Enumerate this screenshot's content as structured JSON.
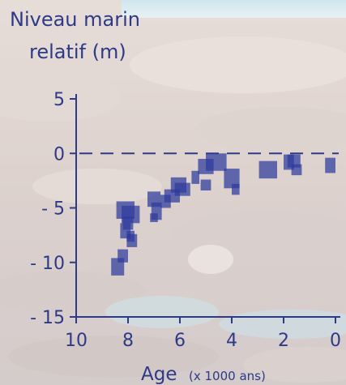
{
  "chart_data": {
    "type": "scatter",
    "title": "",
    "ylabel_line1": "Niveau marin",
    "ylabel_line2": "relatif (m)",
    "xlabel_main": "Age",
    "xlabel_unit": "(x 1000 ans)",
    "xlim": [
      10,
      0
    ],
    "ylim": [
      -15,
      5
    ],
    "x_ticks": [
      10,
      8,
      6,
      4,
      2,
      0
    ],
    "x_tick_labels": [
      "10",
      "8",
      "6",
      "4",
      "2",
      "0"
    ],
    "y_ticks": [
      5,
      0,
      -5,
      -10,
      -15
    ],
    "y_tick_labels": [
      "5",
      "0",
      "- 5",
      "- 10",
      "- 15"
    ],
    "reference_line_y": 0,
    "marker_color": "#2e3a9c",
    "axis_color": "#2e3a86",
    "grid": false,
    "legend": "none",
    "points": [
      {
        "x": 8.4,
        "y": -10.4,
        "age_err": 0.25,
        "level_err": 0.8
      },
      {
        "x": 8.2,
        "y": -9.4,
        "age_err": 0.2,
        "level_err": 0.6
      },
      {
        "x": 8.1,
        "y": -5.2,
        "age_err": 0.35,
        "level_err": 0.8
      },
      {
        "x": 7.9,
        "y": -5.6,
        "age_err": 0.35,
        "level_err": 0.8
      },
      {
        "x": 8.0,
        "y": -6.4,
        "age_err": 0.2,
        "level_err": 0.6
      },
      {
        "x": 8.1,
        "y": -7.1,
        "age_err": 0.2,
        "level_err": 0.7
      },
      {
        "x": 7.9,
        "y": -7.6,
        "age_err": 0.15,
        "level_err": 0.5
      },
      {
        "x": 7.85,
        "y": -8.0,
        "age_err": 0.2,
        "level_err": 0.6
      },
      {
        "x": 7.0,
        "y": -4.2,
        "age_err": 0.25,
        "level_err": 0.7
      },
      {
        "x": 6.9,
        "y": -5.3,
        "age_err": 0.2,
        "level_err": 0.8
      },
      {
        "x": 7.0,
        "y": -5.9,
        "age_err": 0.15,
        "level_err": 0.4
      },
      {
        "x": 6.55,
        "y": -4.4,
        "age_err": 0.2,
        "level_err": 0.6
      },
      {
        "x": 6.3,
        "y": -3.9,
        "age_err": 0.3,
        "level_err": 0.6
      },
      {
        "x": 6.05,
        "y": -2.9,
        "age_err": 0.3,
        "level_err": 0.7
      },
      {
        "x": 5.9,
        "y": -3.3,
        "age_err": 0.3,
        "level_err": 0.6
      },
      {
        "x": 5.4,
        "y": -2.2,
        "age_err": 0.15,
        "level_err": 0.6
      },
      {
        "x": 5.0,
        "y": -1.2,
        "age_err": 0.3,
        "level_err": 0.7
      },
      {
        "x": 5.0,
        "y": -2.9,
        "age_err": 0.2,
        "level_err": 0.5
      },
      {
        "x": 4.6,
        "y": -0.8,
        "age_err": 0.4,
        "level_err": 0.8
      },
      {
        "x": 4.0,
        "y": -2.3,
        "age_err": 0.3,
        "level_err": 0.9
      },
      {
        "x": 3.85,
        "y": -3.3,
        "age_err": 0.15,
        "level_err": 0.5
      },
      {
        "x": 2.6,
        "y": -1.5,
        "age_err": 0.35,
        "level_err": 0.8
      },
      {
        "x": 1.8,
        "y": -0.8,
        "age_err": 0.2,
        "level_err": 0.7
      },
      {
        "x": 1.6,
        "y": -0.7,
        "age_err": 0.25,
        "level_err": 0.6
      },
      {
        "x": 1.5,
        "y": -1.5,
        "age_err": 0.2,
        "level_err": 0.5
      },
      {
        "x": 0.2,
        "y": -1.1,
        "age_err": 0.2,
        "level_err": 0.7
      }
    ]
  }
}
